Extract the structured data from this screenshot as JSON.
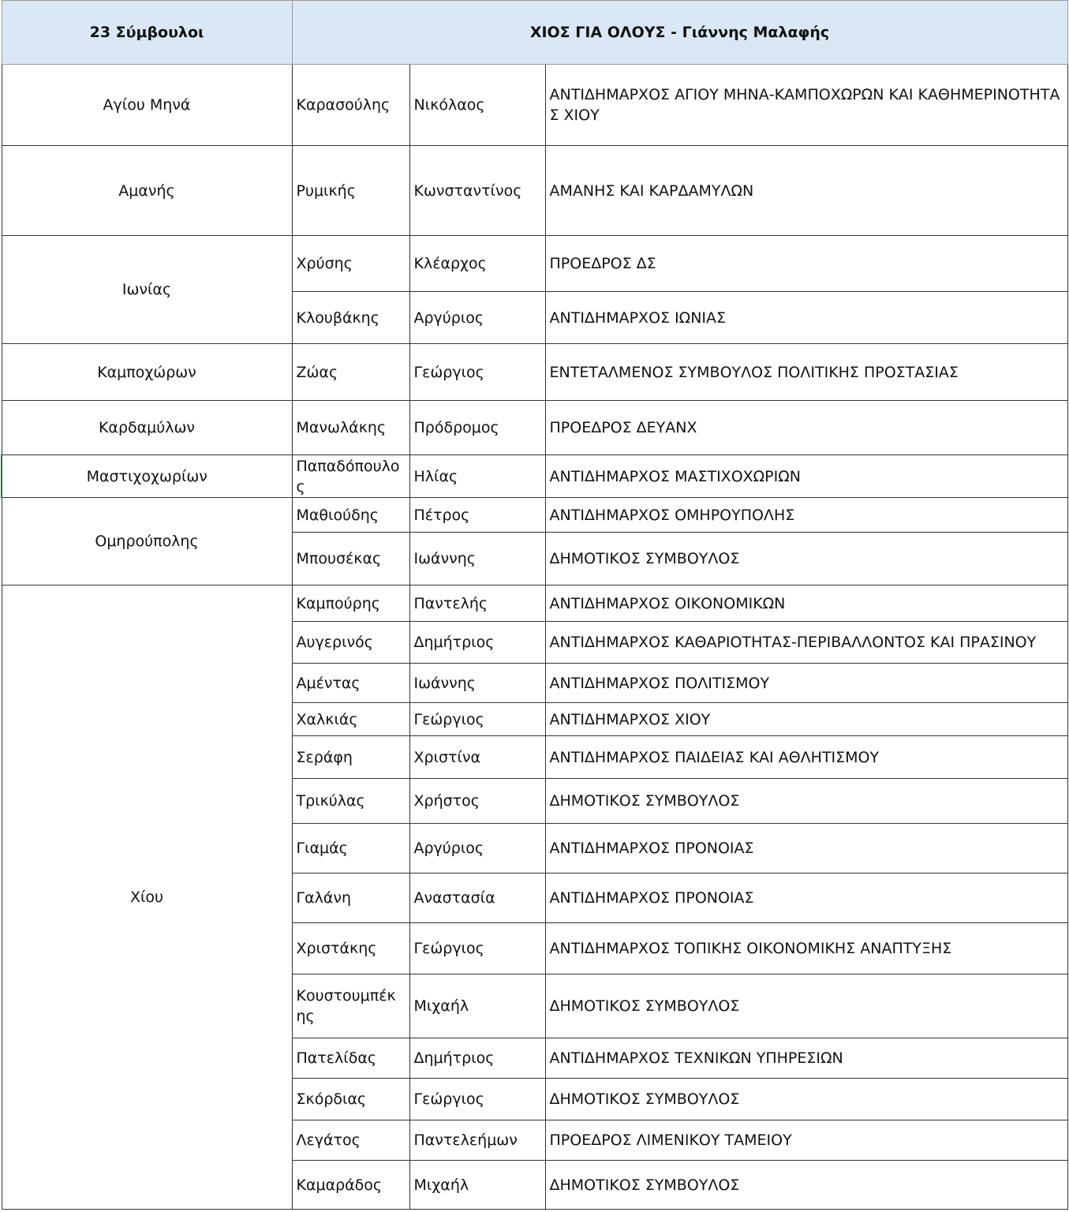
{
  "header": {
    "count": "23 Σύμβουλοι",
    "party": "ΧΙΟΣ ΓΙΑ ΟΛΟΥΣ - Γιάννης Μαλαφής"
  },
  "groups": [
    {
      "area": "Αγίου Μηνά",
      "members": [
        {
          "surname": "Καρασούλης",
          "name": "Νικόλαος",
          "role": "ΑΝΤΙΔΗΜΑΡΧΟΣ ΑΓΙΟΥ ΜΗΝΑ-ΚΑΜΠΟΧΩΡΩΝ ΚΑΙ ΚΑΘΗΜΕΡΙΝΟΤΗΤΑΣ ΧΙΟΥ"
        }
      ]
    },
    {
      "area": "Αμανής",
      "members": [
        {
          "surname": "Ρυμικής",
          "name": "Κωνσταντίνος",
          "role": "ΑΜΑΝΗΣ ΚΑΙ ΚΑΡΔΑΜΥΛΩΝ"
        }
      ]
    },
    {
      "area": "Ιωνίας",
      "members": [
        {
          "surname": "Χρύσης",
          "name": "Κλέαρχος",
          "role": "ΠΡΟΕΔΡΟΣ ΔΣ"
        },
        {
          "surname": "Κλουβάκης",
          "name": "Αργύριος",
          "role": "ΑΝΤΙΔΗΜΑΡΧΟΣ ΙΩΝΙΑΣ"
        }
      ]
    },
    {
      "area": "Καμποχώρων",
      "members": [
        {
          "surname": "Ζώας",
          "name": "Γεώργιος",
          "role": "ΕΝΤΕΤΑΛΜΕΝΟΣ ΣΥΜΒΟΥΛΟΣ ΠΟΛΙΤΙΚΗΣ ΠΡΟΣΤΑΣΙΑΣ"
        }
      ]
    },
    {
      "area": "Καρδαμύλων",
      "members": [
        {
          "surname": "Μανωλάκης",
          "name": "Πρόδρομος",
          "role": "ΠΡΟΕΔΡΟΣ ΔΕΥΑΝΧ"
        }
      ]
    },
    {
      "area": "Μαστιχοχωρίων",
      "members": [
        {
          "surname": "Παπαδόπουλος",
          "name": "Ηλίας",
          "role": "ΑΝΤΙΔΗΜΑΡΧΟΣ ΜΑΣΤΙΧΟΧΩΡΙΩΝ"
        }
      ]
    },
    {
      "area": "Ομηρούπολης",
      "members": [
        {
          "surname": "Μαθιούδης",
          "name": "Πέτρος",
          "role": "ΑΝΤΙΔΗΜΑΡΧΟΣ ΟΜΗΡΟΥΠΟΛΗΣ"
        },
        {
          "surname": "Μπουσέκας",
          "name": "Ιωάννης",
          "role": "ΔΗΜΟΤΙΚΟΣ ΣΥΜΒΟΥΛΟΣ"
        }
      ]
    },
    {
      "area": "Χίου",
      "members": [
        {
          "surname": "Καμπούρης",
          "name": "Παντελής",
          "role": "ΑΝΤΙΔΗΜΑΡΧΟΣ ΟΙΚΟΝΟΜΙΚΩΝ"
        },
        {
          "surname": "Αυγερινός",
          "name": "Δημήτριος",
          "role": "ΑΝΤΙΔΗΜΑΡΧΟΣ ΚΑΘΑΡΙΟΤΗΤΑΣ-ΠΕΡΙΒΑΛΛΟΝΤΟΣ ΚΑΙ ΠΡΑΣΙΝΟΥ"
        },
        {
          "surname": "Αμέντας",
          "name": "Ιωάννης",
          "role": "ΑΝΤΙΔΗΜΑΡΧΟΣ  ΠΟΛΙΤΙΣΜΟΥ"
        },
        {
          "surname": "Χαλκιάς",
          "name": "Γεώργιος",
          "role": "ΑΝΤΙΔΗΜΑΡΧΟΣ ΧΙΟΥ"
        },
        {
          "surname": "Σεράφη",
          "name": "Χριστίνα",
          "role": "ΑΝΤΙΔΗΜΑΡΧΟΣ ΠΑΙΔΕΙΑΣ ΚΑΙ ΑΘΛΗΤΙΣΜΟΥ"
        },
        {
          "surname": "Τρικύλας",
          "name": "Χρήστος",
          "role": "ΔΗΜΟΤΙΚΟΣ ΣΥΜΒΟΥΛΟΣ"
        },
        {
          "surname": "Γιαμάς",
          "name": "Αργύριος",
          "role": "ΑΝΤΙΔΗΜΑΡΧΟΣ ΠΡΟΝΟΙΑΣ"
        },
        {
          "surname": "Γαλάνη",
          "name": "Αναστασία",
          "role": "ΑΝΤΙΔΗΜΑΡΧΟΣ ΠΡΟΝΟΙΑΣ"
        },
        {
          "surname": "Χριστάκης",
          "name": "Γεώργιος",
          "role": "ΑΝΤΙΔΗΜΑΡΧΟΣ ΤΟΠΙΚΗΣ ΟΙΚΟΝΟΜΙΚΗΣ ΑΝΑΠΤΥΞΗΣ"
        },
        {
          "surname": "Κουστουμπέκης",
          "name": "Μιχαήλ",
          "role": "ΔΗΜΟΤΙΚΟΣ ΣΥΜΒΟΥΛΟΣ"
        },
        {
          "surname": "Πατελίδας",
          "name": "Δημήτριος",
          "role": "ΑΝΤΙΔΗΜΑΡΧΟΣ ΤΕΧΝΙΚΩΝ ΥΠΗΡΕΣΙΩΝ"
        },
        {
          "surname": "Σκόρδιας",
          "name": "Γεώργιος",
          "role": "ΔΗΜΟΤΙΚΟΣ ΣΥΜΒΟΥΛΟΣ"
        },
        {
          "surname": "Λεγάτος",
          "name": "Παντελεήμων",
          "role": "ΠΡΟΕΔΡΟΣ ΛΙΜΕΝΙΚΟΥ ΤΑΜΕΙΟΥ"
        },
        {
          "surname": "Καμαράδος",
          "name": "Μιχαήλ",
          "role": "ΔΗΜΟΤΙΚΟΣ ΣΥΜΒΟΥΛΟΣ"
        }
      ]
    }
  ]
}
